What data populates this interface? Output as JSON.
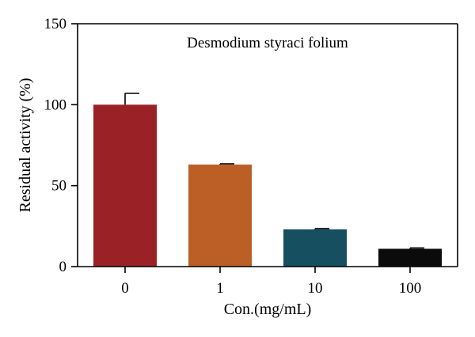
{
  "chart_data": {
    "type": "bar",
    "title": "Desmodium styraci folium",
    "xlabel": "Con.(mg/mL)",
    "ylabel": "Residual activity (%)",
    "categories": [
      "0",
      "1",
      "10",
      "100"
    ],
    "values": [
      100,
      63,
      23,
      11
    ],
    "errors": [
      7,
      0.5,
      0.5,
      0.5
    ],
    "colors": [
      "#9a2126",
      "#bb5f27",
      "#154f60",
      "#0b0b0b"
    ],
    "ylim": [
      0,
      150
    ],
    "yticks": [
      0,
      50,
      100,
      150
    ],
    "grid": false,
    "legend": "none"
  }
}
